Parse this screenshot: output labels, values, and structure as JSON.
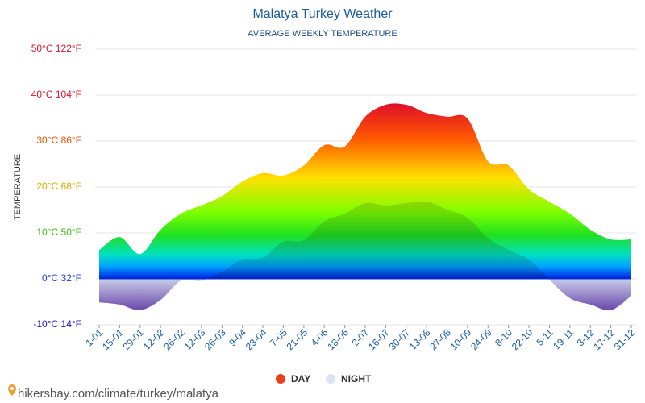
{
  "chart_data": {
    "type": "area",
    "title": "Malatya Turkey Weather",
    "subtitle": "AVERAGE WEEKLY TEMPERATURE",
    "y_label": "TEMPERATURE",
    "footer": "hikersbay.com/climate/turkey/malatya",
    "categories": [
      "1-01",
      "15-01",
      "29-01",
      "12-02",
      "26-02",
      "12-03",
      "26-03",
      "9-04",
      "23-04",
      "7-05",
      "21-05",
      "4-06",
      "18-06",
      "2-07",
      "16-07",
      "30-07",
      "13-08",
      "27-08",
      "10-09",
      "24-09",
      "8-10",
      "22-10",
      "5-11",
      "19-11",
      "3-12",
      "17-12",
      "31-12"
    ],
    "series": [
      {
        "name": "DAY",
        "color": "#e8401c",
        "values": [
          6.3,
          9.1,
          5.4,
          10.7,
          14.2,
          16,
          18,
          21.2,
          23,
          22.5,
          24.7,
          29.1,
          28.8,
          35.3,
          37.9,
          37.9,
          36.1,
          35.3,
          34.9,
          25.6,
          24.7,
          19.5,
          16.8,
          14.2,
          10.7,
          8.6,
          8.6
        ]
      },
      {
        "name": "NIGHT",
        "color": "#dde4f0",
        "values": [
          -5.1,
          -5.6,
          -6.8,
          -4.6,
          -0.4,
          -0.4,
          1.6,
          4.2,
          4.6,
          8.1,
          8.4,
          12.5,
          14.2,
          16.5,
          16,
          16.5,
          16.8,
          15.1,
          13.3,
          8.9,
          6.3,
          4.2,
          -0.2,
          -4.2,
          -5.6,
          -6.8,
          -3.7
        ]
      }
    ],
    "ylim": [
      -10,
      50
    ],
    "yticks": [
      {
        "value": -10,
        "label": "-10°C 14°F"
      },
      {
        "value": 0,
        "label": "0°C 32°F"
      },
      {
        "value": 10,
        "label": "10°C 50°F"
      },
      {
        "value": 20,
        "label": "20°C 68°F"
      },
      {
        "value": 30,
        "label": "30°C 86°F"
      },
      {
        "value": 40,
        "label": "40°C 104°F"
      },
      {
        "value": 50,
        "label": "50°C 122°F"
      }
    ],
    "grid": true
  }
}
